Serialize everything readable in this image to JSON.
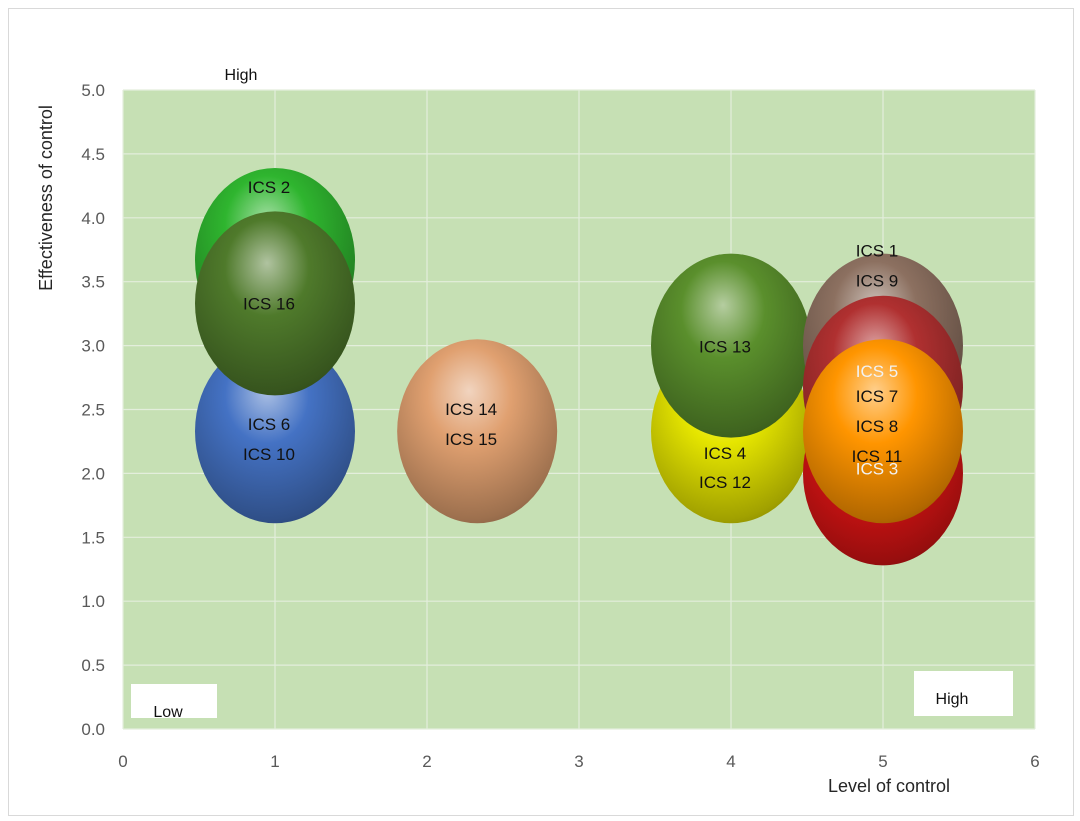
{
  "chart_data": {
    "type": "bubble",
    "xlabel": "Level of control",
    "ylabel": "Effectiveness of control",
    "xlim": [
      0,
      6
    ],
    "ylim": [
      0,
      5
    ],
    "x_ticks": [
      "0",
      "1",
      "2",
      "3",
      "4",
      "5",
      "6"
    ],
    "y_ticks": [
      "0.0",
      "0.5",
      "1.0",
      "1.5",
      "2.0",
      "2.5",
      "3.0",
      "3.5",
      "4.0",
      "4.5",
      "5.0"
    ],
    "grid": true,
    "plot_background": "#c6e0b4",
    "corner_labels": {
      "top": "High",
      "bottom_left": "Low",
      "bottom_right": "High"
    },
    "points": [
      {
        "labels": [
          "ICS 2"
        ],
        "x": 1.0,
        "y": 3.67,
        "color": "#2fb52f"
      },
      {
        "labels": [
          "ICS 6",
          "ICS 10"
        ],
        "x": 1.0,
        "y": 2.33,
        "color": "#4472c4"
      },
      {
        "labels": [
          "ICS 16"
        ],
        "x": 1.0,
        "y": 3.33,
        "color": "#4f7a2b"
      },
      {
        "labels": [
          "ICS 14",
          "ICS 15"
        ],
        "x": 2.33,
        "y": 2.33,
        "color": "#e0a070"
      },
      {
        "labels": [
          "ICS 4",
          "ICS 12"
        ],
        "x": 4.0,
        "y": 2.33,
        "color": "#e6e600"
      },
      {
        "labels": [
          "ICS 13"
        ],
        "x": 4.0,
        "y": 3.0,
        "color": "#5a8f2c"
      },
      {
        "labels": [
          "ICS 1",
          "ICS 9"
        ],
        "x": 5.0,
        "y": 3.0,
        "color": "#8c7060"
      },
      {
        "labels": [
          "ICS 3"
        ],
        "x": 5.0,
        "y": 2.0,
        "color": "#d91414"
      },
      {
        "labels": [
          "ICS 5"
        ],
        "x": 5.0,
        "y": 2.67,
        "color": "#b03030"
      },
      {
        "labels": [
          "ICS 7",
          "ICS 8",
          "ICS 11"
        ],
        "x": 5.0,
        "y": 2.33,
        "color": "#ff9500"
      }
    ]
  }
}
